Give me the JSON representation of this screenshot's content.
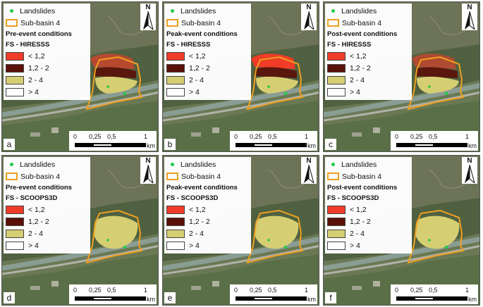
{
  "legend": {
    "landslides_label": "Landslides",
    "subbasin_label": "Sub-basin 4",
    "classes": [
      {
        "label": "< 1,2",
        "color": "#f03c28"
      },
      {
        "label": "1,2 - 2",
        "color": "#5a1008"
      },
      {
        "label": "2 - 4",
        "color": "#d6ce72"
      },
      {
        "label": "> 4",
        "color": "#ffffff"
      }
    ],
    "landslide_color": "#22cc44",
    "subbasin_color": "#f0a020"
  },
  "north_label": "N",
  "scalebar": {
    "ticks": [
      "0",
      "0,25",
      "0,5",
      "1"
    ],
    "unit": "km"
  },
  "panels": [
    {
      "letter": "a",
      "condition": "Pre-event conditions",
      "model": "FS - HIRESSS",
      "red_level": 0.35
    },
    {
      "letter": "b",
      "condition": "Peak-event conditions",
      "model": "FS - HIRESSS",
      "red_level": 0.85
    },
    {
      "letter": "c",
      "condition": "Post-event conditions",
      "model": "FS - HIRESSS",
      "red_level": 0.3
    },
    {
      "letter": "d",
      "condition": "Pre-event conditions",
      "model": "FS - SCOOPS3D",
      "red_level": 0.0
    },
    {
      "letter": "e",
      "condition": "Peak-event conditions",
      "model": "FS - SCOOPS3D",
      "red_level": 0.0
    },
    {
      "letter": "f",
      "condition": "Post-event conditions",
      "model": "FS - SCOOPS3D",
      "red_level": 0.0
    }
  ]
}
